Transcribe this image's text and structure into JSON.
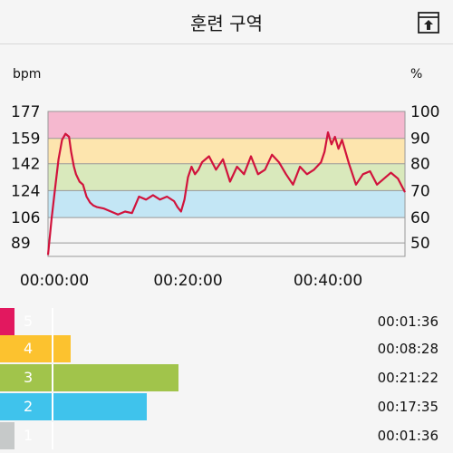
{
  "header": {
    "title": "훈련 구역",
    "export_icon": "export-icon"
  },
  "chart_data": {
    "type": "line",
    "ylabel_left": "bpm",
    "ylabel_right": "%",
    "left_ticks": [
      "177",
      "159",
      "142",
      "124",
      "106",
      "89"
    ],
    "left_tick_values": [
      177,
      159,
      142,
      124,
      106,
      89
    ],
    "right_ticks": [
      "100",
      "90",
      "80",
      "70",
      "60",
      "50"
    ],
    "x_ticks": [
      "00:00:00",
      "00:20:00",
      "00:40:00"
    ],
    "x_tick_minutes": [
      0,
      20,
      40
    ],
    "xlim_minutes": [
      0,
      51
    ],
    "ylim": [
      80,
      177
    ],
    "zones": [
      {
        "zone": 5,
        "from": 159,
        "to": 177,
        "color": "#f5b8cf"
      },
      {
        "zone": 4,
        "from": 142,
        "to": 159,
        "color": "#fde5ae"
      },
      {
        "zone": 3,
        "from": 124,
        "to": 142,
        "color": "#d9e9bc"
      },
      {
        "zone": 2,
        "from": 106,
        "to": 124,
        "color": "#c3e6f5"
      }
    ],
    "series": [
      {
        "color": "#d1133c",
        "x": [
          0,
          0.5,
          1,
          1.5,
          2,
          2.5,
          3,
          3.3,
          3.7,
          4,
          4.5,
          5,
          5.5,
          6,
          6.5,
          7,
          8,
          9,
          10,
          11,
          12,
          13,
          14,
          15,
          16,
          17,
          18,
          18.5,
          19,
          19.5,
          20,
          20.5,
          21,
          21.5,
          22,
          23,
          24,
          25,
          26,
          27,
          28,
          29,
          30,
          31,
          32,
          33,
          34,
          35,
          36,
          37,
          38,
          39,
          39.5,
          40,
          40.5,
          41,
          41.5,
          42,
          43,
          44,
          45,
          46,
          47,
          48,
          49,
          50,
          51
        ],
        "y": [
          81,
          105,
          125,
          145,
          158,
          162,
          160,
          150,
          140,
          135,
          130,
          128,
          120,
          116,
          114,
          113,
          112,
          110,
          108,
          110,
          109,
          120,
          118,
          121,
          118,
          120,
          117,
          113,
          110,
          118,
          133,
          140,
          135,
          138,
          143,
          147,
          138,
          145,
          130,
          140,
          135,
          147,
          135,
          138,
          148,
          143,
          135,
          128,
          140,
          135,
          138,
          143,
          150,
          163,
          155,
          160,
          152,
          158,
          142,
          128,
          135,
          137,
          128,
          132,
          136,
          132,
          123
        ]
      }
    ]
  },
  "zones_list": [
    {
      "zone": "5",
      "time": "00:01:36",
      "color": "#e2185f",
      "fraction": 0.075
    },
    {
      "zone": "4",
      "time": "00:08:28",
      "color": "#fcc22f",
      "fraction": 0.372
    },
    {
      "zone": "3",
      "time": "00:21:22",
      "color": "#a1c44b",
      "fraction": 0.937
    },
    {
      "zone": "2",
      "time": "00:17:35",
      "color": "#3fc3ec",
      "fraction": 0.77
    },
    {
      "zone": "1",
      "time": "00:01:36",
      "color": "#c6c9c9",
      "fraction": 0.075
    }
  ]
}
